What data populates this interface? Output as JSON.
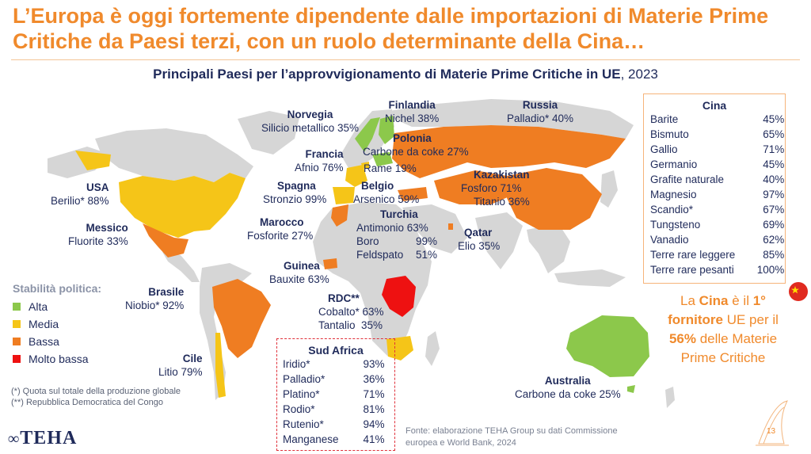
{
  "title": "L’Europa è oggi fortemente dipendente dalle importazioni di Materie Prime Critiche da Paesi terzi, con un ruolo determinante della Cina…",
  "subtitle": {
    "bold": "Principali Paesi per l’approvvigionamento di Materie Prime Critiche in UE",
    "rest": ", 2023"
  },
  "colors": {
    "alta": "#8cc84b",
    "media": "#f5c518",
    "bassa": "#ef7d22",
    "molto_bassa": "#ee1111",
    "land": "#d6d6d6",
    "accent": "#f08a2c"
  },
  "countries": {
    "norvegia": {
      "name": "Norvegia",
      "item": "Silicio metallico 35%"
    },
    "finlandia": {
      "name": "Finlandia",
      "item": "Nichel 38%"
    },
    "russia": {
      "name": "Russia",
      "item": "Palladio* 40%"
    },
    "polonia": {
      "name": "Polonia",
      "item": "Carbone da coke 27%"
    },
    "francia": {
      "name": "Francia",
      "item": "Afnio 76%"
    },
    "rame": "Rame 19%",
    "usa": {
      "name": "USA",
      "item": "Berilio* 88%"
    },
    "spagna": {
      "name": "Spagna",
      "item": "Stronzio 99%"
    },
    "belgio": {
      "name": "Belgio",
      "item": "Arsenico 59%"
    },
    "kazakistan": {
      "name": "Kazakistan",
      "item1": "Fosforo 71%",
      "item2": "Titanio 36%"
    },
    "messico": {
      "name": "Messico",
      "item": "Fluorite 33%"
    },
    "marocco": {
      "name": "Marocco",
      "item": "Fosforite 27%"
    },
    "turchia": {
      "name": "Turchia",
      "item1": "Antimonio 63%",
      "item2_name": "Boro",
      "item2_val": "99%",
      "item3_name": "Feldspato",
      "item3_val": "51%"
    },
    "qatar": {
      "name": "Qatar",
      "item": "Elio 35%"
    },
    "guinea": {
      "name": "Guinea",
      "item": "Bauxite 63%"
    },
    "brasile": {
      "name": "Brasile",
      "item": "Niobio* 92%"
    },
    "rdc": {
      "name": "RDC**",
      "item1": "Cobalto* 63%",
      "item2": "Tantalio  35%"
    },
    "cile": {
      "name": "Cile",
      "item": "Litio 79%"
    },
    "australia": {
      "name": "Australia",
      "item": "Carbone da coke 25%"
    }
  },
  "cina": {
    "title": "Cina",
    "rows": [
      {
        "name": "Barite",
        "value": "45%"
      },
      {
        "name": "Bismuto",
        "value": "65%"
      },
      {
        "name": "Gallio",
        "value": "71%"
      },
      {
        "name": "Germanio",
        "value": "45%"
      },
      {
        "name": "Grafite naturale",
        "value": "40%"
      },
      {
        "name": "Magnesio",
        "value": "97%"
      },
      {
        "name": "Scandio*",
        "value": "67%"
      },
      {
        "name": "Tungsteno",
        "value": "69%"
      },
      {
        "name": "Vanadio",
        "value": "62%"
      },
      {
        "name": "Terre rare leggere",
        "value": "85%"
      },
      {
        "name": "Terre rare pesanti",
        "value": "100%"
      }
    ]
  },
  "sud_africa": {
    "title": "Sud Africa",
    "rows": [
      {
        "name": "Iridio*",
        "value": "93%"
      },
      {
        "name": "Palladio*",
        "value": "36%"
      },
      {
        "name": "Platino*",
        "value": "71%"
      },
      {
        "name": "Rodio*",
        "value": "81%"
      },
      {
        "name": "Rutenio*",
        "value": "94%"
      },
      {
        "name": "Manganese",
        "value": "41%"
      }
    ]
  },
  "legend": {
    "title": "Stabilità politica:",
    "items": [
      "Alta",
      "Media",
      "Bassa",
      "Molto bassa"
    ]
  },
  "callout": {
    "p1": "La ",
    "cina": "Cina",
    "p2": " è il ",
    "primo": "1° fornitore",
    "p3": " UE per il ",
    "pct": "56%",
    "p4": " delle Materie Prime Critiche"
  },
  "notes": {
    "n1": "(*) Quota sul totale della produzione globale",
    "n2": "(**) Repubblica Democratica del Congo"
  },
  "source": {
    "l1": "Fonte: elaborazione TEHA Group su dati Commissione",
    "l2": "europea e World Bank, 2024"
  },
  "logo": "TEHA",
  "page_number": "13"
}
